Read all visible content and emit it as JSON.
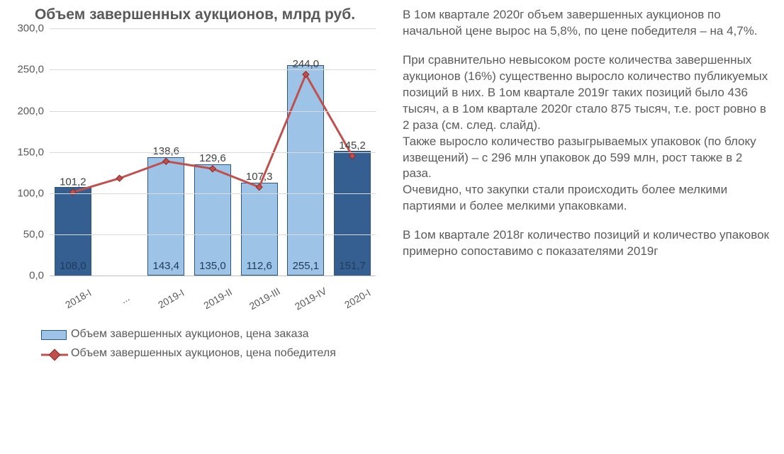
{
  "chart": {
    "title": "Объем завершенных аукционов, млрд руб.",
    "type": "bar+line",
    "categories": [
      "2018-I",
      "...",
      "2019-I",
      "2019-II",
      "2019-III",
      "2019-IV",
      "2020-I"
    ],
    "bar_values": [
      108.0,
      null,
      143.4,
      135.0,
      112.6,
      255.1,
      151.7
    ],
    "bar_colors": [
      "#355f91",
      "#ffffff",
      "#9dc3e6",
      "#9dc3e6",
      "#9dc3e6",
      "#9dc3e6",
      "#355f91"
    ],
    "bar_border": "#2f557f",
    "bar_in_labels": [
      "108,0",
      "",
      "143,4",
      "135,0",
      "112,6",
      "255,1",
      "151,7"
    ],
    "line_values": [
      101.2,
      118.0,
      138.6,
      129.6,
      107.3,
      244.0,
      145.2
    ],
    "line_labels": [
      "101,2",
      "",
      "138,6",
      "129,6",
      "107,3",
      "244,0",
      "145,2"
    ],
    "line_color": "#c0504d",
    "line_width": 3,
    "marker_size": 9,
    "marker_shape": "diamond",
    "ylim": [
      0,
      300
    ],
    "ytick_step": 50,
    "yticks": [
      "0,0",
      "50,0",
      "100,0",
      "150,0",
      "200,0",
      "250,0",
      "300,0"
    ],
    "grid_color": "#d9d9d9",
    "axis_color": "#bfbfbf",
    "background_color": "#ffffff",
    "title_fontsize": 21,
    "title_color": "#595959",
    "tick_fontsize": 15,
    "tick_color": "#595959",
    "data_label_fontsize": 15,
    "legend": {
      "bar": "Объем завершенных аукционов, цена заказа",
      "line": "Объем завершенных аукционов, цена победителя"
    }
  },
  "commentary": {
    "p1": "В 1ом квартале 2020г объем завершенных аукционов по начальной цене вырос на 5,8%, по цене победителя – на 4,7%.",
    "p2": "При сравнительно невысоком росте количества завершенных аукционов (16%) существенно выросло количество публикуемых позиций в них. В 1ом квартале 2019г таких позиций было 436 тысяч, а в 1ом квартале 2020г стало 875 тысяч, т.е. рост ровно в 2 раза (см. след. слайд).",
    "p3": "Также выросло количество разыгрываемых упаковок (по блоку извещений) – с 296 млн упаковок до 599 млн, рост также в 2 раза.",
    "p4": "Очевидно, что закупки стали происходить более мелкими партиями и более мелкими упаковками.",
    "p5": "В 1ом квартале 2018г количество позиций и количество упаковок примерно сопоставимо с показателями 2019г"
  }
}
